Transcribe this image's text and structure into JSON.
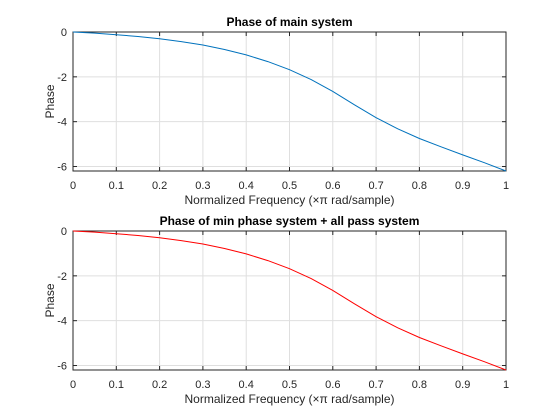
{
  "chart_data": [
    {
      "type": "line",
      "title": "Phase of main system",
      "xlabel": "Normalized Frequency (×π rad/sample)",
      "ylabel": "Phase",
      "xlim": [
        0,
        1
      ],
      "ylim": [
        -6.2,
        0
      ],
      "xticks": [
        0,
        0.1,
        0.2,
        0.3,
        0.4,
        0.5,
        0.6,
        0.7,
        0.8,
        0.9,
        1
      ],
      "xtick_labels": [
        "0",
        "0.1",
        "0.2",
        "0.3",
        "0.4",
        "0.5",
        "0.6",
        "0.7",
        "0.8",
        "0.9",
        "1"
      ],
      "yticks": [
        0,
        -2,
        -4,
        -6
      ],
      "ytick_labels": [
        "0",
        "-2",
        "-4",
        "-6"
      ],
      "grid": true,
      "series": [
        {
          "color": "#0072bd",
          "x": [
            0,
            0.05,
            0.1,
            0.15,
            0.2,
            0.25,
            0.3,
            0.35,
            0.4,
            0.45,
            0.5,
            0.55,
            0.6,
            0.65,
            0.7,
            0.75,
            0.8,
            0.85,
            0.9,
            0.95,
            1
          ],
          "y": [
            0,
            -0.05,
            -0.12,
            -0.2,
            -0.3,
            -0.43,
            -0.58,
            -0.78,
            -1.02,
            -1.32,
            -1.68,
            -2.12,
            -2.65,
            -3.25,
            -3.82,
            -4.32,
            -4.75,
            -5.12,
            -5.48,
            -5.83,
            -6.2
          ]
        }
      ]
    },
    {
      "type": "line",
      "title": "Phase of min phase system + all pass system",
      "xlabel": "Normalized Frequency (×π rad/sample)",
      "ylabel": "Phase",
      "xlim": [
        0,
        1
      ],
      "ylim": [
        -6.2,
        0
      ],
      "xticks": [
        0,
        0.1,
        0.2,
        0.3,
        0.4,
        0.5,
        0.6,
        0.7,
        0.8,
        0.9,
        1
      ],
      "xtick_labels": [
        "0",
        "0.1",
        "0.2",
        "0.3",
        "0.4",
        "0.5",
        "0.6",
        "0.7",
        "0.8",
        "0.9",
        "1"
      ],
      "yticks": [
        0,
        -2,
        -4,
        -6
      ],
      "ytick_labels": [
        "0",
        "-2",
        "-4",
        "-6"
      ],
      "grid": true,
      "series": [
        {
          "color": "#ff0000",
          "x": [
            0,
            0.05,
            0.1,
            0.15,
            0.2,
            0.25,
            0.3,
            0.35,
            0.4,
            0.45,
            0.5,
            0.55,
            0.6,
            0.65,
            0.7,
            0.75,
            0.8,
            0.85,
            0.9,
            0.95,
            1
          ],
          "y": [
            0,
            -0.05,
            -0.12,
            -0.2,
            -0.3,
            -0.43,
            -0.58,
            -0.78,
            -1.02,
            -1.32,
            -1.68,
            -2.12,
            -2.65,
            -3.25,
            -3.82,
            -4.32,
            -4.75,
            -5.12,
            -5.48,
            -5.83,
            -6.2
          ]
        }
      ]
    }
  ]
}
